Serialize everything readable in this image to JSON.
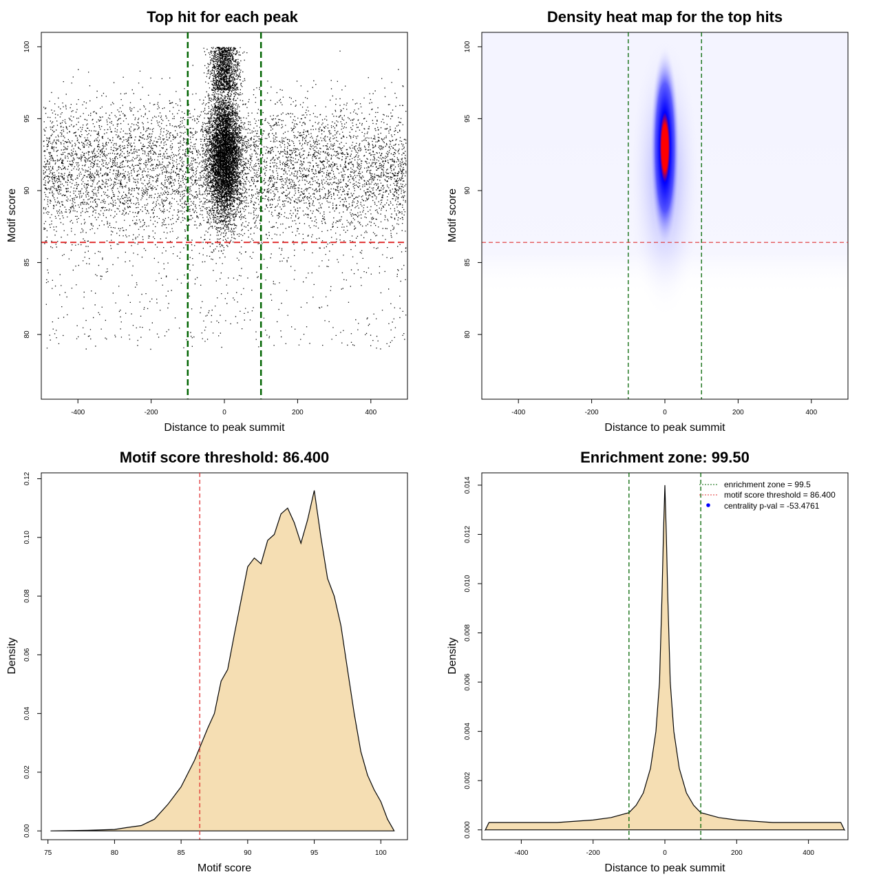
{
  "chart_data": [
    {
      "type": "scatter",
      "title": "Top hit for each peak",
      "xlabel": "Distance to peak summit",
      "ylabel": "Motif score",
      "xlim": [
        -500,
        500
      ],
      "ylim": [
        75.5,
        101
      ],
      "xticks": [
        "-400",
        "-200",
        "0",
        "200",
        "400"
      ],
      "yticks": [
        "80",
        "85",
        "90",
        "95",
        "100"
      ],
      "vlines": [
        -100,
        100
      ],
      "hline": 86.4,
      "grid": false
    },
    {
      "type": "heatmap",
      "title": "Density heat map for the top hits",
      "xlabel": "Distance to peak summit",
      "ylabel": "Motif score",
      "xlim": [
        -500,
        500
      ],
      "ylim": [
        75.5,
        101
      ],
      "xticks": [
        "-400",
        "-200",
        "0",
        "200",
        "400"
      ],
      "yticks": [
        "80",
        "85",
        "90",
        "95",
        "100"
      ],
      "vlines": [
        -100,
        100
      ],
      "hline": 86.4,
      "grid": false
    },
    {
      "type": "area",
      "title": "Motif score threshold: 86.400",
      "xlabel": "Motif score",
      "ylabel": "Density",
      "xlim": [
        74.5,
        102
      ],
      "ylim": [
        -0.003,
        0.122
      ],
      "xticks": [
        "75",
        "80",
        "85",
        "90",
        "95",
        "100"
      ],
      "yticks": [
        "0.00",
        "0.02",
        "0.04",
        "0.06",
        "0.08",
        "0.10",
        "0.12"
      ],
      "vline": 86.4,
      "points": [
        [
          75.2,
          0.0
        ],
        [
          78,
          0.0002
        ],
        [
          80,
          0.0005
        ],
        [
          81,
          0.0012
        ],
        [
          82,
          0.0018
        ],
        [
          83,
          0.004
        ],
        [
          84,
          0.009
        ],
        [
          85,
          0.015
        ],
        [
          86,
          0.024
        ],
        [
          87,
          0.035
        ],
        [
          87.5,
          0.04
        ],
        [
          88,
          0.051
        ],
        [
          88.5,
          0.055
        ],
        [
          89,
          0.067
        ],
        [
          90,
          0.09
        ],
        [
          90.5,
          0.093
        ],
        [
          91,
          0.091
        ],
        [
          91.5,
          0.099
        ],
        [
          92,
          0.101
        ],
        [
          92.5,
          0.108
        ],
        [
          93,
          0.11
        ],
        [
          93.5,
          0.105
        ],
        [
          94,
          0.098
        ],
        [
          94.5,
          0.106
        ],
        [
          95,
          0.116
        ],
        [
          95.5,
          0.1
        ],
        [
          96,
          0.086
        ],
        [
          96.5,
          0.08
        ],
        [
          97,
          0.07
        ],
        [
          97.5,
          0.055
        ],
        [
          98,
          0.04
        ],
        [
          98.5,
          0.027
        ],
        [
          99,
          0.019
        ],
        [
          99.5,
          0.014
        ],
        [
          100,
          0.01
        ],
        [
          100.5,
          0.004
        ],
        [
          101,
          0.0
        ]
      ],
      "grid": false
    },
    {
      "type": "area",
      "title": "Enrichment zone: 99.50",
      "xlabel": "Distance to peak summit",
      "ylabel": "Density",
      "xlim": [
        -510,
        510
      ],
      "ylim": [
        -0.0004,
        0.0145
      ],
      "xticks": [
        "-400",
        "-200",
        "0",
        "200",
        "400"
      ],
      "yticks": [
        "0.000",
        "0.002",
        "0.004",
        "0.006",
        "0.008",
        "0.010",
        "0.012",
        "0.014"
      ],
      "vlines": [
        -100,
        100
      ],
      "points": [
        [
          -500,
          0.0
        ],
        [
          -490,
          0.0003
        ],
        [
          -400,
          0.0003
        ],
        [
          -300,
          0.0003
        ],
        [
          -200,
          0.0004
        ],
        [
          -150,
          0.0005
        ],
        [
          -100,
          0.0007
        ],
        [
          -80,
          0.001
        ],
        [
          -60,
          0.0015
        ],
        [
          -40,
          0.0025
        ],
        [
          -25,
          0.004
        ],
        [
          -15,
          0.006
        ],
        [
          -8,
          0.0095
        ],
        [
          -4,
          0.012
        ],
        [
          0,
          0.014
        ],
        [
          4,
          0.012
        ],
        [
          8,
          0.0095
        ],
        [
          15,
          0.006
        ],
        [
          25,
          0.004
        ],
        [
          40,
          0.0025
        ],
        [
          60,
          0.0015
        ],
        [
          80,
          0.001
        ],
        [
          100,
          0.0007
        ],
        [
          150,
          0.0005
        ],
        [
          200,
          0.0004
        ],
        [
          300,
          0.0003
        ],
        [
          400,
          0.0003
        ],
        [
          490,
          0.0003
        ],
        [
          500,
          0.0
        ]
      ],
      "legend": {
        "placement": "top-right",
        "entries": [
          {
            "label": "enrichment zone = 99.5",
            "color": "#006400",
            "style": "dotted-line"
          },
          {
            "label": "motif score threshold = 86.400",
            "color": "#e03030",
            "style": "dotted-line"
          },
          {
            "label": "centrality p-val = -53.4761",
            "color": "#0000ff",
            "style": "dot"
          }
        ]
      },
      "grid": false
    }
  ],
  "colors": {
    "scatter_points": "#000000",
    "vline": "#006400",
    "hline": "#e03030",
    "area_fill": "#f5deb3",
    "heat_low": "#ffffff",
    "heat_mid": "#0000ff",
    "heat_high": "#ff0000"
  }
}
